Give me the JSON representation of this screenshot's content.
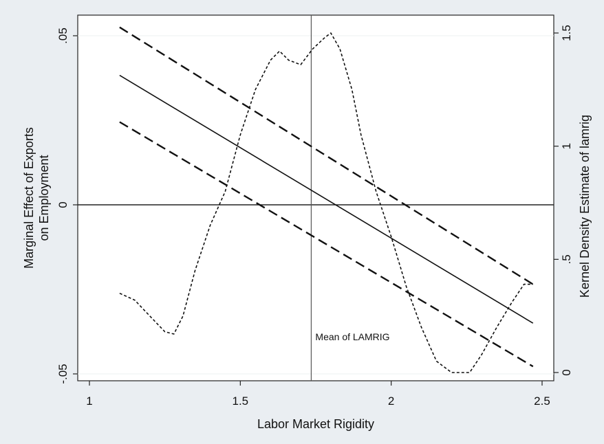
{
  "chart_data": {
    "type": "line",
    "title": "",
    "xlabel": "Labor Market Rigidity",
    "ylabel_lines": [
      "Marginal Effect of Exports",
      "on Employment"
    ],
    "y2label": "Kernel Density Estimate of lamrig",
    "xlim": [
      1,
      2.55
    ],
    "ylim": [
      -0.05,
      0.0525
    ],
    "y2lim": [
      0,
      1.5
    ],
    "xticks": [
      1,
      1.5,
      2,
      2.5
    ],
    "xtick_labels": [
      "1",
      "1.5",
      "2",
      "2.5"
    ],
    "yticks": [
      -0.05,
      0,
      0.05
    ],
    "ytick_labels": [
      "-.05",
      "0",
      ".05"
    ],
    "y2ticks": [
      0,
      0.5,
      1,
      1.5
    ],
    "y2tick_labels": [
      "0",
      ".5",
      "1",
      "1.5"
    ],
    "grid": false,
    "zero_line": 0,
    "series": [
      {
        "style": "solid",
        "axis": "left",
        "x": [
          1.1,
          2.47
        ],
        "values": [
          0.0383,
          -0.035
        ]
      },
      {
        "style": "long-dash",
        "axis": "left",
        "x": [
          1.1,
          2.47
        ],
        "values": [
          0.0525,
          -0.0235
        ]
      },
      {
        "style": "long-dash",
        "axis": "left",
        "x": [
          1.1,
          2.47
        ],
        "values": [
          0.0245,
          -0.0478
        ]
      },
      {
        "style": "short-dash",
        "axis": "right",
        "x": [
          1.1,
          1.15,
          1.2,
          1.25,
          1.28,
          1.31,
          1.35,
          1.4,
          1.45,
          1.5,
          1.55,
          1.6,
          1.63,
          1.66,
          1.7,
          1.74,
          1.78,
          1.8,
          1.83,
          1.87,
          1.9,
          1.95,
          2.0,
          2.05,
          2.1,
          2.15,
          2.2,
          2.26,
          2.3,
          2.35,
          2.4,
          2.44,
          2.47
        ],
        "values": [
          0.35,
          0.32,
          0.25,
          0.18,
          0.17,
          0.25,
          0.45,
          0.65,
          0.8,
          1.05,
          1.25,
          1.38,
          1.42,
          1.38,
          1.36,
          1.43,
          1.48,
          1.5,
          1.43,
          1.25,
          1.05,
          0.8,
          0.6,
          0.38,
          0.2,
          0.05,
          0,
          0,
          0.08,
          0.2,
          0.31,
          0.39,
          0.39
        ]
      }
    ],
    "vline": {
      "x": 1.735,
      "label": "Mean of LAMRIG"
    }
  }
}
